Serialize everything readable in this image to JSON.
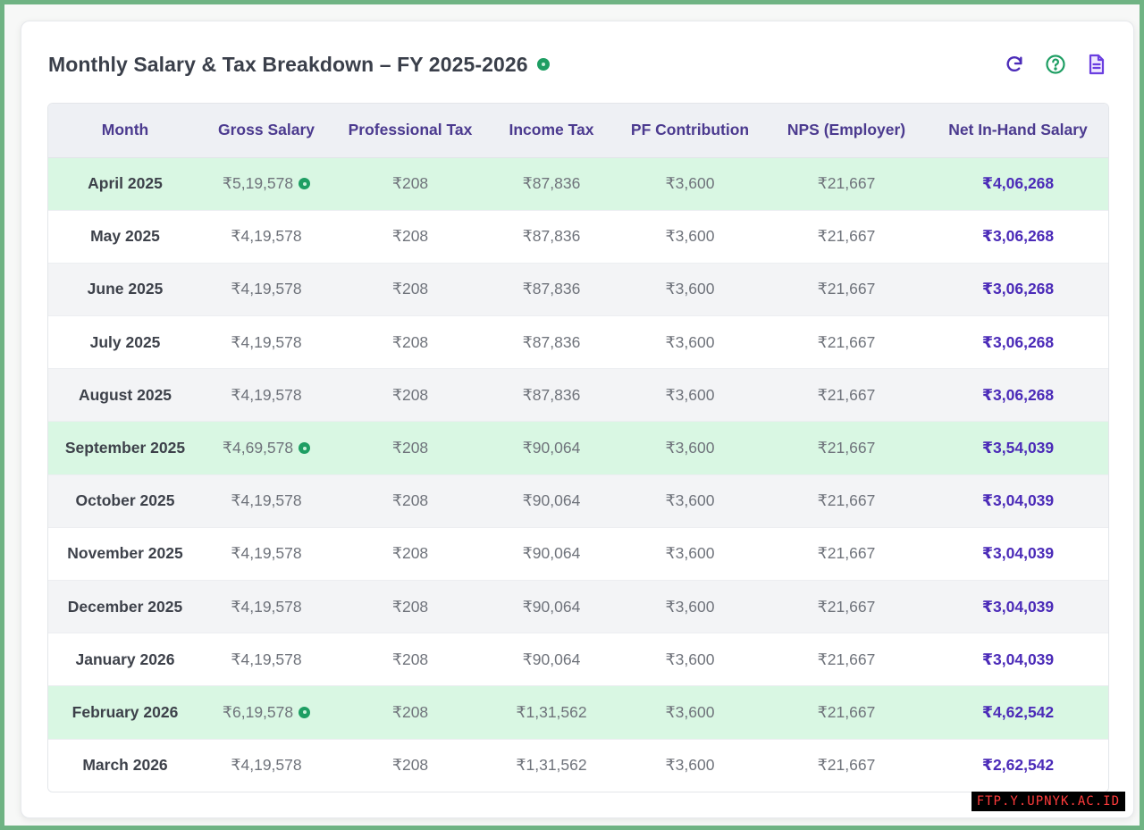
{
  "header": {
    "title": "Monthly Salary & Tax Breakdown – FY 2025-2026",
    "status_color": "#1e9e63",
    "tools": [
      {
        "icon": "refresh-icon",
        "color": "#4b2bb8"
      },
      {
        "icon": "help-icon",
        "color": "#1e9e63"
      },
      {
        "icon": "document-icon",
        "color": "#6a3ee0"
      }
    ]
  },
  "table": {
    "columns": [
      "Month",
      "Gross Salary",
      "Professional Tax",
      "Income Tax",
      "PF Contribution",
      "NPS (Employer)",
      "Net In-Hand Salary"
    ],
    "rows": [
      {
        "month": "April 2025",
        "gross": "₹5,19,578",
        "gross_flag": true,
        "ptax": "₹208",
        "itax": "₹87,836",
        "pf": "₹3,600",
        "nps": "₹21,667",
        "net": "₹4,06,268",
        "style": "green"
      },
      {
        "month": "May 2025",
        "gross": "₹4,19,578",
        "gross_flag": false,
        "ptax": "₹208",
        "itax": "₹87,836",
        "pf": "₹3,600",
        "nps": "₹21,667",
        "net": "₹3,06,268",
        "style": "white"
      },
      {
        "month": "June 2025",
        "gross": "₹4,19,578",
        "gross_flag": false,
        "ptax": "₹208",
        "itax": "₹87,836",
        "pf": "₹3,600",
        "nps": "₹21,667",
        "net": "₹3,06,268",
        "style": "grey"
      },
      {
        "month": "July 2025",
        "gross": "₹4,19,578",
        "gross_flag": false,
        "ptax": "₹208",
        "itax": "₹87,836",
        "pf": "₹3,600",
        "nps": "₹21,667",
        "net": "₹3,06,268",
        "style": "white"
      },
      {
        "month": "August 2025",
        "gross": "₹4,19,578",
        "gross_flag": false,
        "ptax": "₹208",
        "itax": "₹87,836",
        "pf": "₹3,600",
        "nps": "₹21,667",
        "net": "₹3,06,268",
        "style": "grey"
      },
      {
        "month": "September 2025",
        "gross": "₹4,69,578",
        "gross_flag": true,
        "ptax": "₹208",
        "itax": "₹90,064",
        "pf": "₹3,600",
        "nps": "₹21,667",
        "net": "₹3,54,039",
        "style": "green"
      },
      {
        "month": "October 2025",
        "gross": "₹4,19,578",
        "gross_flag": false,
        "ptax": "₹208",
        "itax": "₹90,064",
        "pf": "₹3,600",
        "nps": "₹21,667",
        "net": "₹3,04,039",
        "style": "grey"
      },
      {
        "month": "November 2025",
        "gross": "₹4,19,578",
        "gross_flag": false,
        "ptax": "₹208",
        "itax": "₹90,064",
        "pf": "₹3,600",
        "nps": "₹21,667",
        "net": "₹3,04,039",
        "style": "white"
      },
      {
        "month": "December 2025",
        "gross": "₹4,19,578",
        "gross_flag": false,
        "ptax": "₹208",
        "itax": "₹90,064",
        "pf": "₹3,600",
        "nps": "₹21,667",
        "net": "₹3,04,039",
        "style": "grey"
      },
      {
        "month": "January 2026",
        "gross": "₹4,19,578",
        "gross_flag": false,
        "ptax": "₹208",
        "itax": "₹90,064",
        "pf": "₹3,600",
        "nps": "₹21,667",
        "net": "₹3,04,039",
        "style": "white"
      },
      {
        "month": "February 2026",
        "gross": "₹6,19,578",
        "gross_flag": true,
        "ptax": "₹208",
        "itax": "₹1,31,562",
        "pf": "₹3,600",
        "nps": "₹21,667",
        "net": "₹4,62,542",
        "style": "green"
      },
      {
        "month": "March 2026",
        "gross": "₹4,19,578",
        "gross_flag": false,
        "ptax": "₹208",
        "itax": "₹1,31,562",
        "pf": "₹3,600",
        "nps": "₹21,667",
        "net": "₹2,62,542",
        "style": "white"
      }
    ]
  },
  "watermark": "FTP.Y.UPNYK.AC.ID",
  "colors": {
    "frame": "#6fb383",
    "header_text": "#4b3a8f",
    "net_text": "#4b2bb8",
    "highlight_row": "#d9f7e3",
    "alt_row": "#f3f4f6"
  }
}
